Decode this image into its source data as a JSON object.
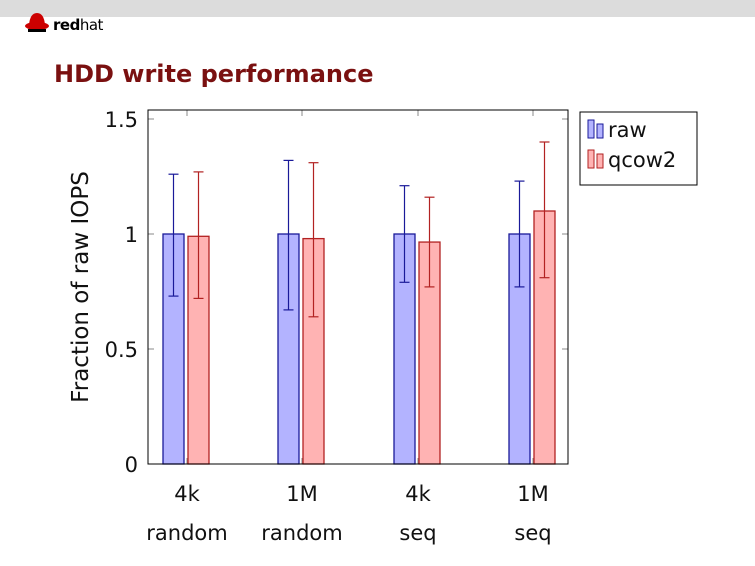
{
  "slide": {
    "title": "HDD write performance",
    "logo_bold": "red",
    "logo_light": "hat"
  },
  "colors": {
    "raw_fill": "#b3b3ff",
    "raw_stroke": "#1a1a99",
    "qcow2_fill": "#ffb3b3",
    "qcow2_stroke": "#b22222",
    "title": "#7a1010"
  },
  "chart_data": {
    "type": "bar",
    "title": "",
    "xlabel": "",
    "ylabel": "Fraction of raw IOPS",
    "ylim": [
      0,
      1.5
    ],
    "yticks": [
      "0",
      "0.5",
      "1",
      "1.5"
    ],
    "categories": [
      [
        "4k",
        "random"
      ],
      [
        "1M",
        "random"
      ],
      [
        "4k",
        "seq"
      ],
      [
        "1M",
        "seq"
      ]
    ],
    "legend_position": "outside-top-right",
    "series": [
      {
        "name": "raw",
        "values": [
          1.0,
          1.0,
          1.0,
          1.0
        ],
        "err_low": [
          0.73,
          0.67,
          0.79,
          0.77
        ],
        "err_high": [
          1.26,
          1.32,
          1.21,
          1.23
        ]
      },
      {
        "name": "qcow2",
        "values": [
          0.99,
          0.98,
          0.965,
          1.1
        ],
        "err_low": [
          0.72,
          0.64,
          0.77,
          0.81
        ],
        "err_high": [
          1.27,
          1.31,
          1.16,
          1.4
        ]
      }
    ]
  }
}
